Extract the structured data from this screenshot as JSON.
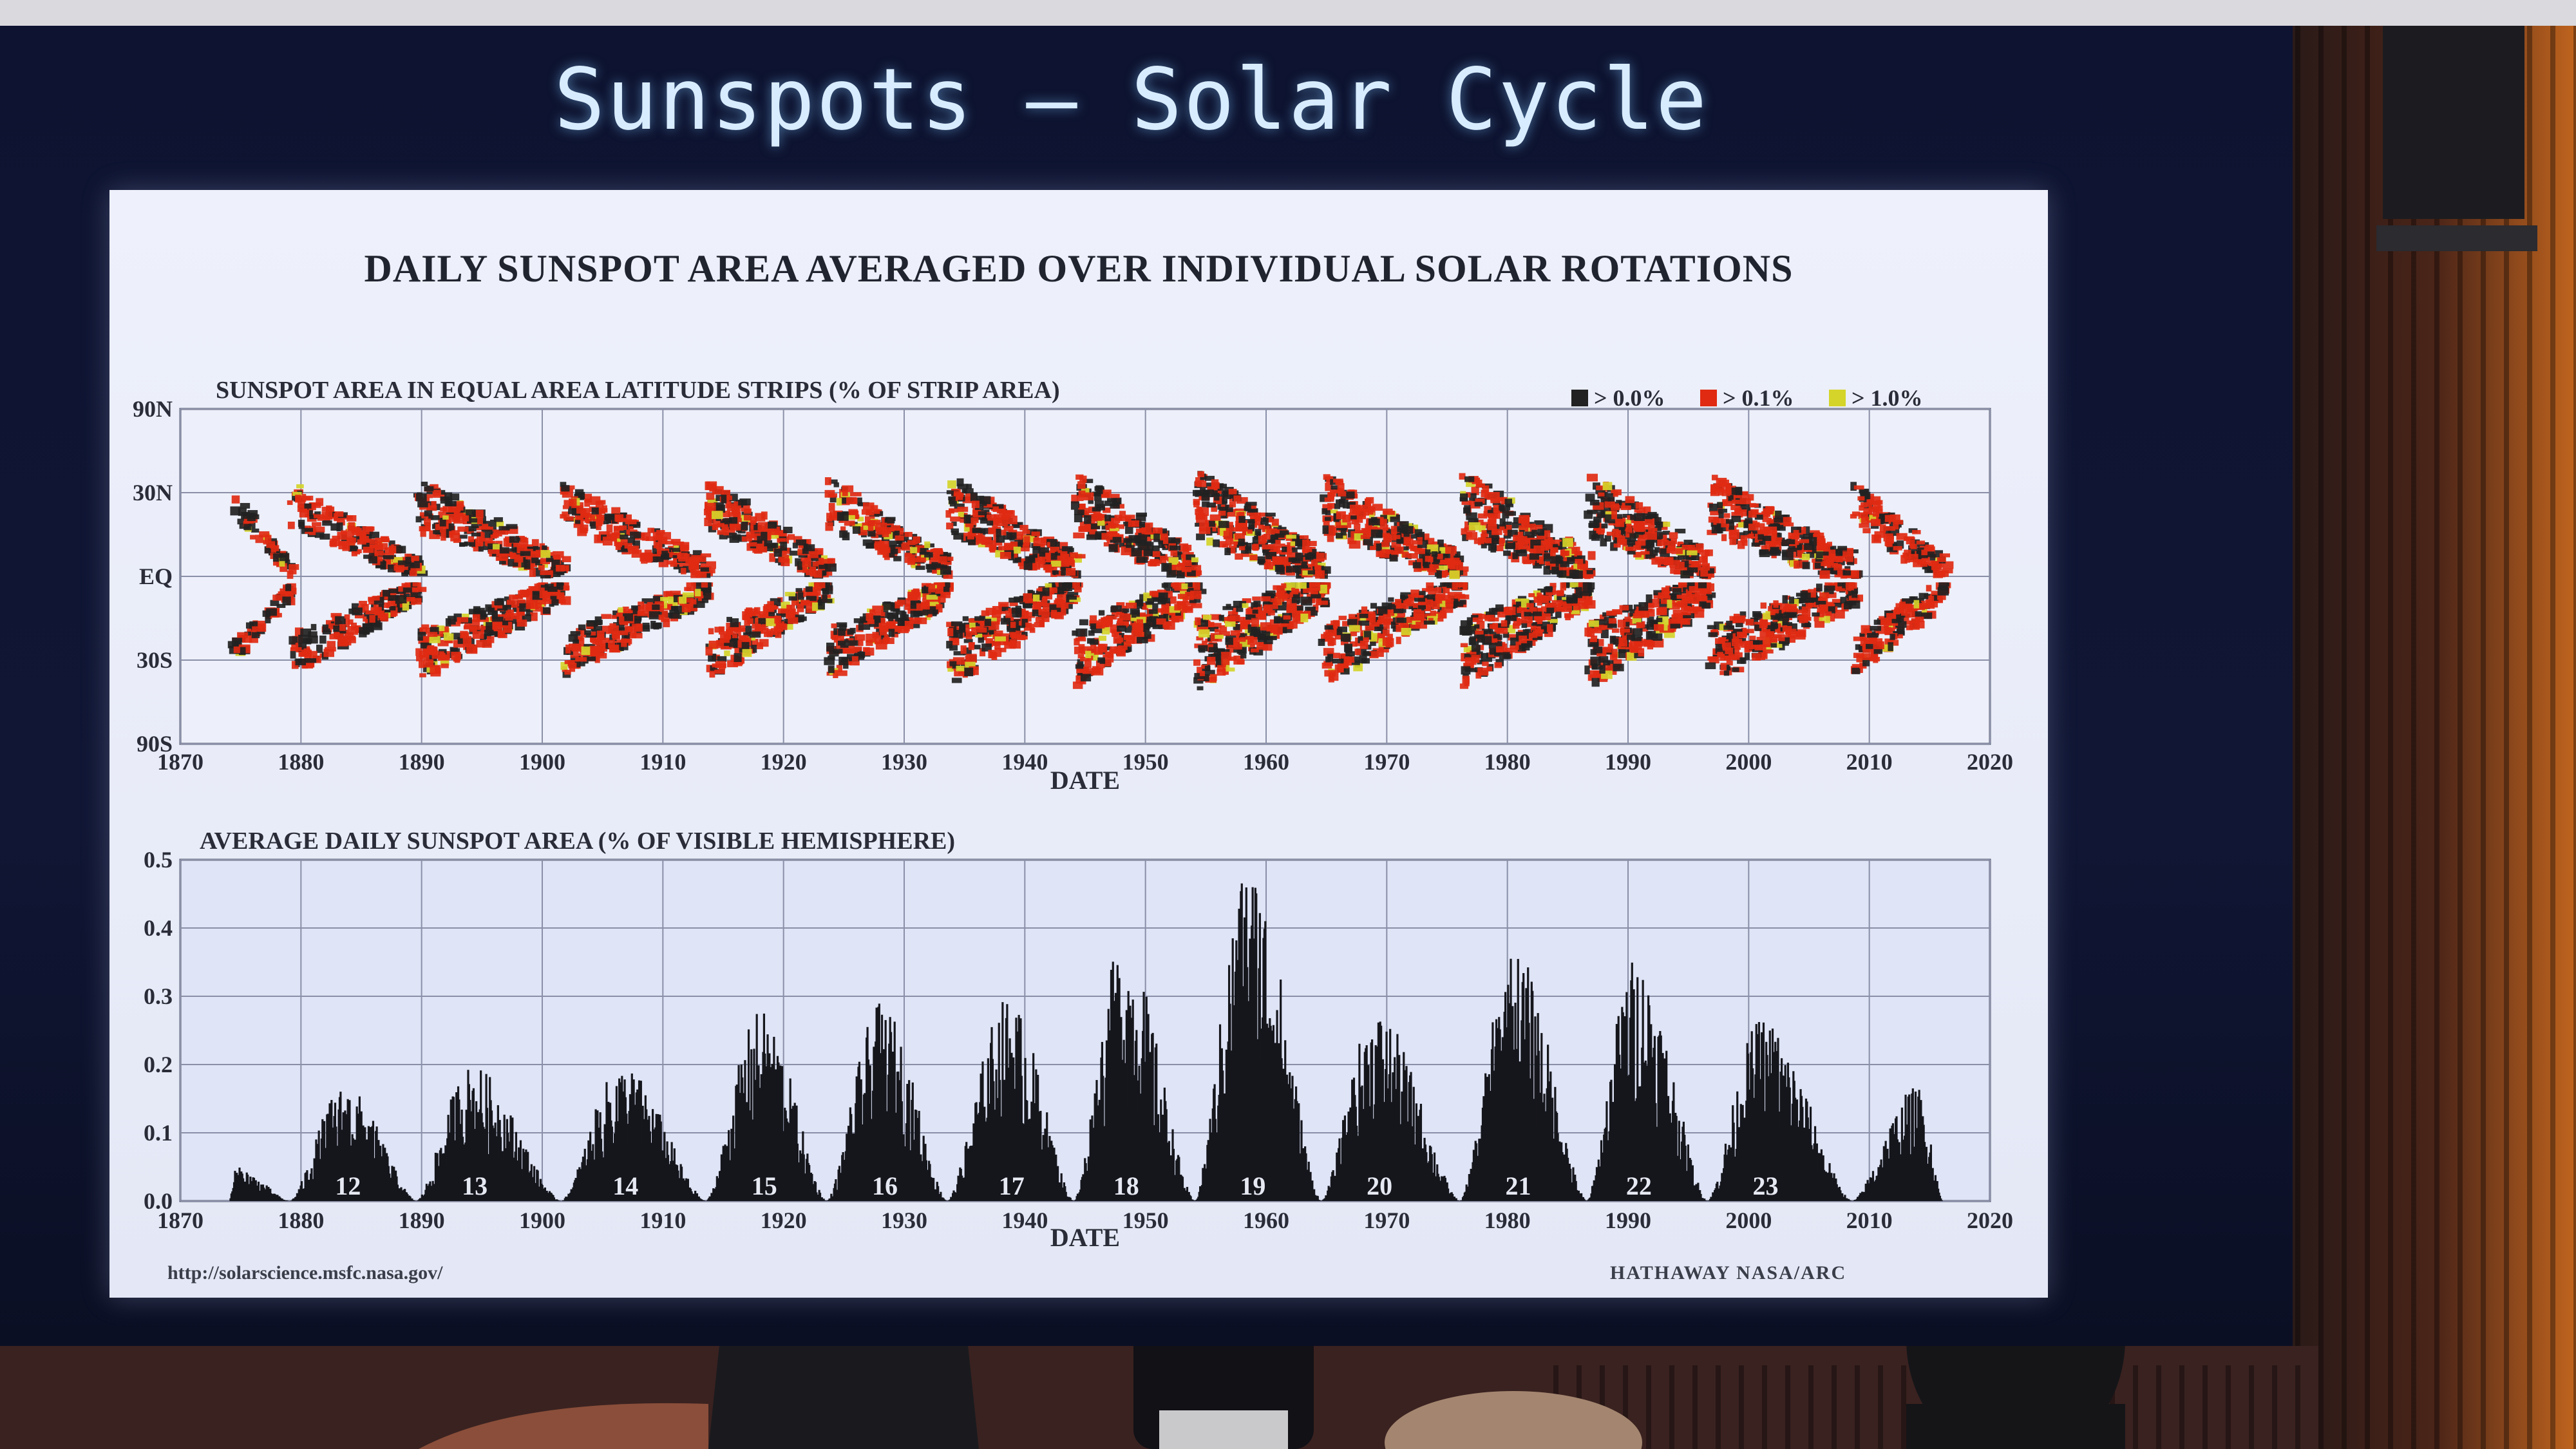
{
  "slide": {
    "title": "Sunspots – Solar Cycle",
    "main_title": "DAILY SUNSPOT AREA AVERAGED OVER INDIVIDUAL SOLAR ROTATIONS",
    "credit_left": "http://solarscience.msfc.nasa.gov/",
    "credit_right": "HATHAWAY   NASA/ARC"
  },
  "colors": {
    "level_0": "#222222",
    "level_1": "#e02a12",
    "level_2": "#d4d42a",
    "grid": "#8a8fa8",
    "bars": "#15161c"
  },
  "chart_data": [
    {
      "type": "heatmap",
      "title": "SUNSPOT AREA IN EQUAL AREA LATITUDE STRIPS (% OF STRIP AREA)",
      "xlabel": "DATE",
      "ylabel": "",
      "xlim": [
        1870,
        2020
      ],
      "x_ticks": [
        "1870",
        "1880",
        "1890",
        "1900",
        "1910",
        "1920",
        "1930",
        "1940",
        "1950",
        "1960",
        "1970",
        "1980",
        "1990",
        "2000",
        "2010",
        "2020"
      ],
      "y_ticks": [
        "90N",
        "30N",
        "EQ",
        "30S",
        "90S"
      ],
      "legend": [
        "> 0.0%",
        "> 0.1%",
        "> 1.0%"
      ],
      "legend_position": "top-right",
      "grid": true,
      "cycles": [
        {
          "start": 1874.0,
          "end": 1879.0,
          "amp": 0.45
        },
        {
          "start": 1879.0,
          "end": 1889.5,
          "amp": 0.7
        },
        {
          "start": 1889.5,
          "end": 1901.5,
          "amp": 0.85
        },
        {
          "start": 1901.5,
          "end": 1913.5,
          "amp": 0.75
        },
        {
          "start": 1913.5,
          "end": 1923.5,
          "amp": 0.85
        },
        {
          "start": 1923.5,
          "end": 1933.5,
          "amp": 0.85
        },
        {
          "start": 1933.5,
          "end": 1944.0,
          "amp": 1.0
        },
        {
          "start": 1944.0,
          "end": 1954.0,
          "amp": 1.05
        },
        {
          "start": 1954.0,
          "end": 1964.5,
          "amp": 1.2
        },
        {
          "start": 1964.5,
          "end": 1976.0,
          "amp": 1.0
        },
        {
          "start": 1976.0,
          "end": 1986.5,
          "amp": 1.1
        },
        {
          "start": 1986.5,
          "end": 1996.5,
          "amp": 1.1
        },
        {
          "start": 1996.5,
          "end": 2008.5,
          "amp": 1.0
        },
        {
          "start": 2008.5,
          "end": 2016.0,
          "amp": 0.75
        }
      ]
    },
    {
      "type": "bar",
      "title": "AVERAGE DAILY SUNSPOT AREA (% OF VISIBLE HEMISPHERE)",
      "xlabel": "DATE",
      "ylabel": "",
      "xlim": [
        1870,
        2020
      ],
      "ylim": [
        0,
        0.5
      ],
      "x_ticks": [
        "1870",
        "1880",
        "1890",
        "1900",
        "1910",
        "1920",
        "1930",
        "1940",
        "1950",
        "1960",
        "1970",
        "1980",
        "1990",
        "2000",
        "2010",
        "2020"
      ],
      "y_ticks": [
        "0.0",
        "0.1",
        "0.2",
        "0.3",
        "0.4",
        "0.5"
      ],
      "grid": true,
      "cycles": [
        {
          "label": "",
          "start": 1874.0,
          "max": 1874.5,
          "end": 1879.0,
          "peak": 0.05
        },
        {
          "label": "12",
          "start": 1879.0,
          "max": 1883.5,
          "end": 1889.5,
          "peak": 0.17
        },
        {
          "label": "13",
          "start": 1889.5,
          "max": 1894.0,
          "end": 1901.5,
          "peak": 0.2
        },
        {
          "label": "14",
          "start": 1901.5,
          "max": 1906.5,
          "end": 1913.5,
          "peak": 0.2
        },
        {
          "label": "15",
          "start": 1913.5,
          "max": 1918.0,
          "end": 1923.5,
          "peak": 0.28
        },
        {
          "label": "16",
          "start": 1923.5,
          "max": 1928.0,
          "end": 1933.5,
          "peak": 0.29
        },
        {
          "label": "17",
          "start": 1933.5,
          "max": 1938.5,
          "end": 1944.0,
          "peak": 0.3
        },
        {
          "label": "18",
          "start": 1944.0,
          "max": 1948.0,
          "end": 1954.0,
          "peak": 0.38
        },
        {
          "label": "19",
          "start": 1954.0,
          "max": 1958.5,
          "end": 1964.5,
          "peak": 0.5
        },
        {
          "label": "20",
          "start": 1964.5,
          "max": 1969.0,
          "end": 1976.0,
          "peak": 0.28
        },
        {
          "label": "21",
          "start": 1976.0,
          "max": 1980.5,
          "end": 1986.5,
          "peak": 0.37
        },
        {
          "label": "22",
          "start": 1986.5,
          "max": 1990.5,
          "end": 1996.5,
          "peak": 0.36
        },
        {
          "label": "23",
          "start": 1996.5,
          "max": 2001.0,
          "end": 2008.5,
          "peak": 0.27
        },
        {
          "label": "",
          "start": 2008.5,
          "max": 2014.0,
          "end": 2016.0,
          "peak": 0.17
        }
      ]
    }
  ]
}
